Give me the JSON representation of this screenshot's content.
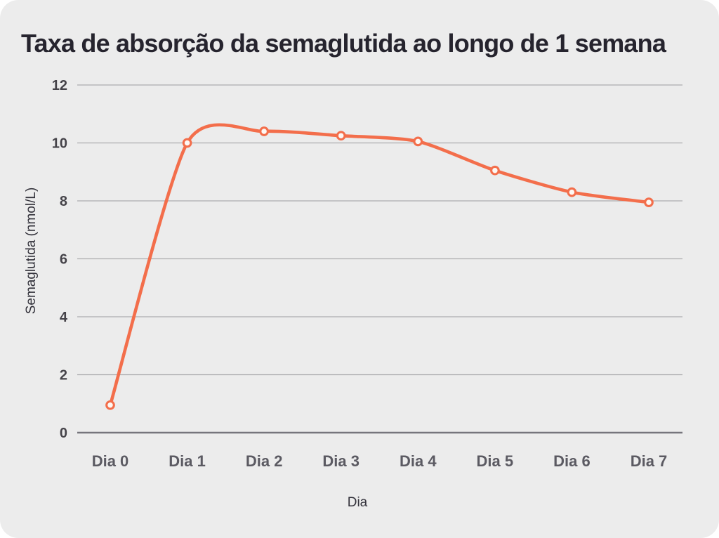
{
  "title": "Taxa de absorção da semaglutida ao longo de 1 semana",
  "chart_data": {
    "type": "line",
    "title": "Taxa de absorção da semaglutida ao longo de 1 semana",
    "categories": [
      "Dia 0",
      "Dia 1",
      "Dia 2",
      "Dia 3",
      "Dia 4",
      "Dia 5",
      "Dia 6",
      "Dia 7"
    ],
    "series": [
      {
        "name": "Semaglutida",
        "values": [
          0.95,
          10.0,
          10.4,
          10.25,
          10.05,
          9.05,
          8.3,
          7.95
        ]
      }
    ],
    "xlabel": "Dia",
    "ylabel": "Semaglutida (nmol/L)",
    "ylim": [
      0,
      12
    ],
    "yticks": [
      0,
      2,
      4,
      6,
      8,
      10,
      12
    ],
    "grid": true,
    "legend": false,
    "line_smooth": true,
    "markers": "open-circle"
  },
  "colors": {
    "background": "#ECECEC",
    "line": "#F36E4B",
    "marker_fill": "#FDF8F4",
    "marker_stroke": "#F36E4B",
    "gridline": "#ABABAE",
    "axis_line": "#76757C",
    "title_text": "#26242E",
    "tick_text": "#454349"
  }
}
